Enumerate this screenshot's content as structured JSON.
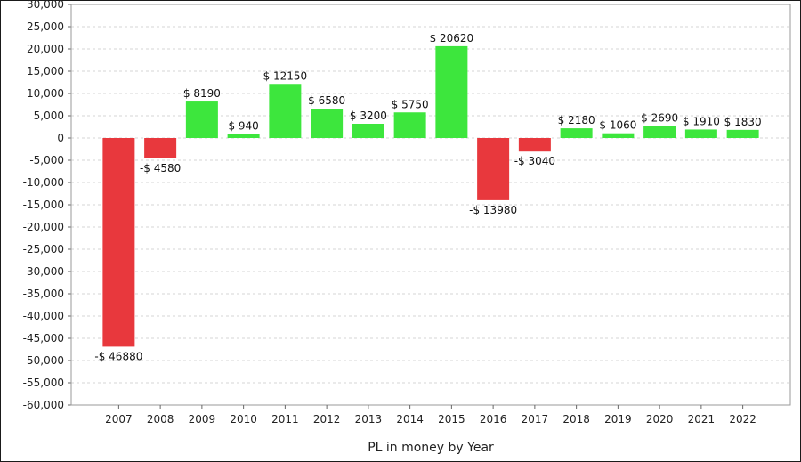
{
  "chart_data": {
    "type": "bar",
    "title": "",
    "xlabel": "PL in money by Year",
    "ylabel": "",
    "ylim": [
      -60000,
      30000
    ],
    "ytick_step": 5000,
    "grid": true,
    "legend": "none",
    "categories": [
      "2007",
      "2008",
      "2009",
      "2010",
      "2011",
      "2012",
      "2013",
      "2014",
      "2015",
      "2016",
      "2017",
      "2018",
      "2019",
      "2020",
      "2021",
      "2022"
    ],
    "values": [
      -46880,
      -4580,
      8190,
      940,
      12150,
      6580,
      3200,
      5750,
      20620,
      -13980,
      -3040,
      2180,
      1060,
      2690,
      1910,
      1830
    ],
    "data_labels": [
      "-$ 46880",
      "-$ 4580",
      "$ 8190",
      "$ 940",
      "$ 12150",
      "$ 6580",
      "$ 3200",
      "$ 5750",
      "$ 20620",
      "-$ 13980",
      "-$ 3040",
      "$ 2180",
      "$ 1060",
      "$ 2690",
      "$ 1910",
      "$ 1830"
    ],
    "y_tick_labels": [
      "30,000",
      "25,000",
      "20,000",
      "15,000",
      "10,000",
      "5,000",
      "0",
      "-5,000",
      "-10,000",
      "-15,000",
      "-20,000",
      "-25,000",
      "-30,000",
      "-35,000",
      "-40,000",
      "-45,000",
      "-50,000",
      "-55,000",
      "-60,000"
    ],
    "colors": {
      "positive": "#3de63d",
      "negative": "#e8383d"
    }
  }
}
